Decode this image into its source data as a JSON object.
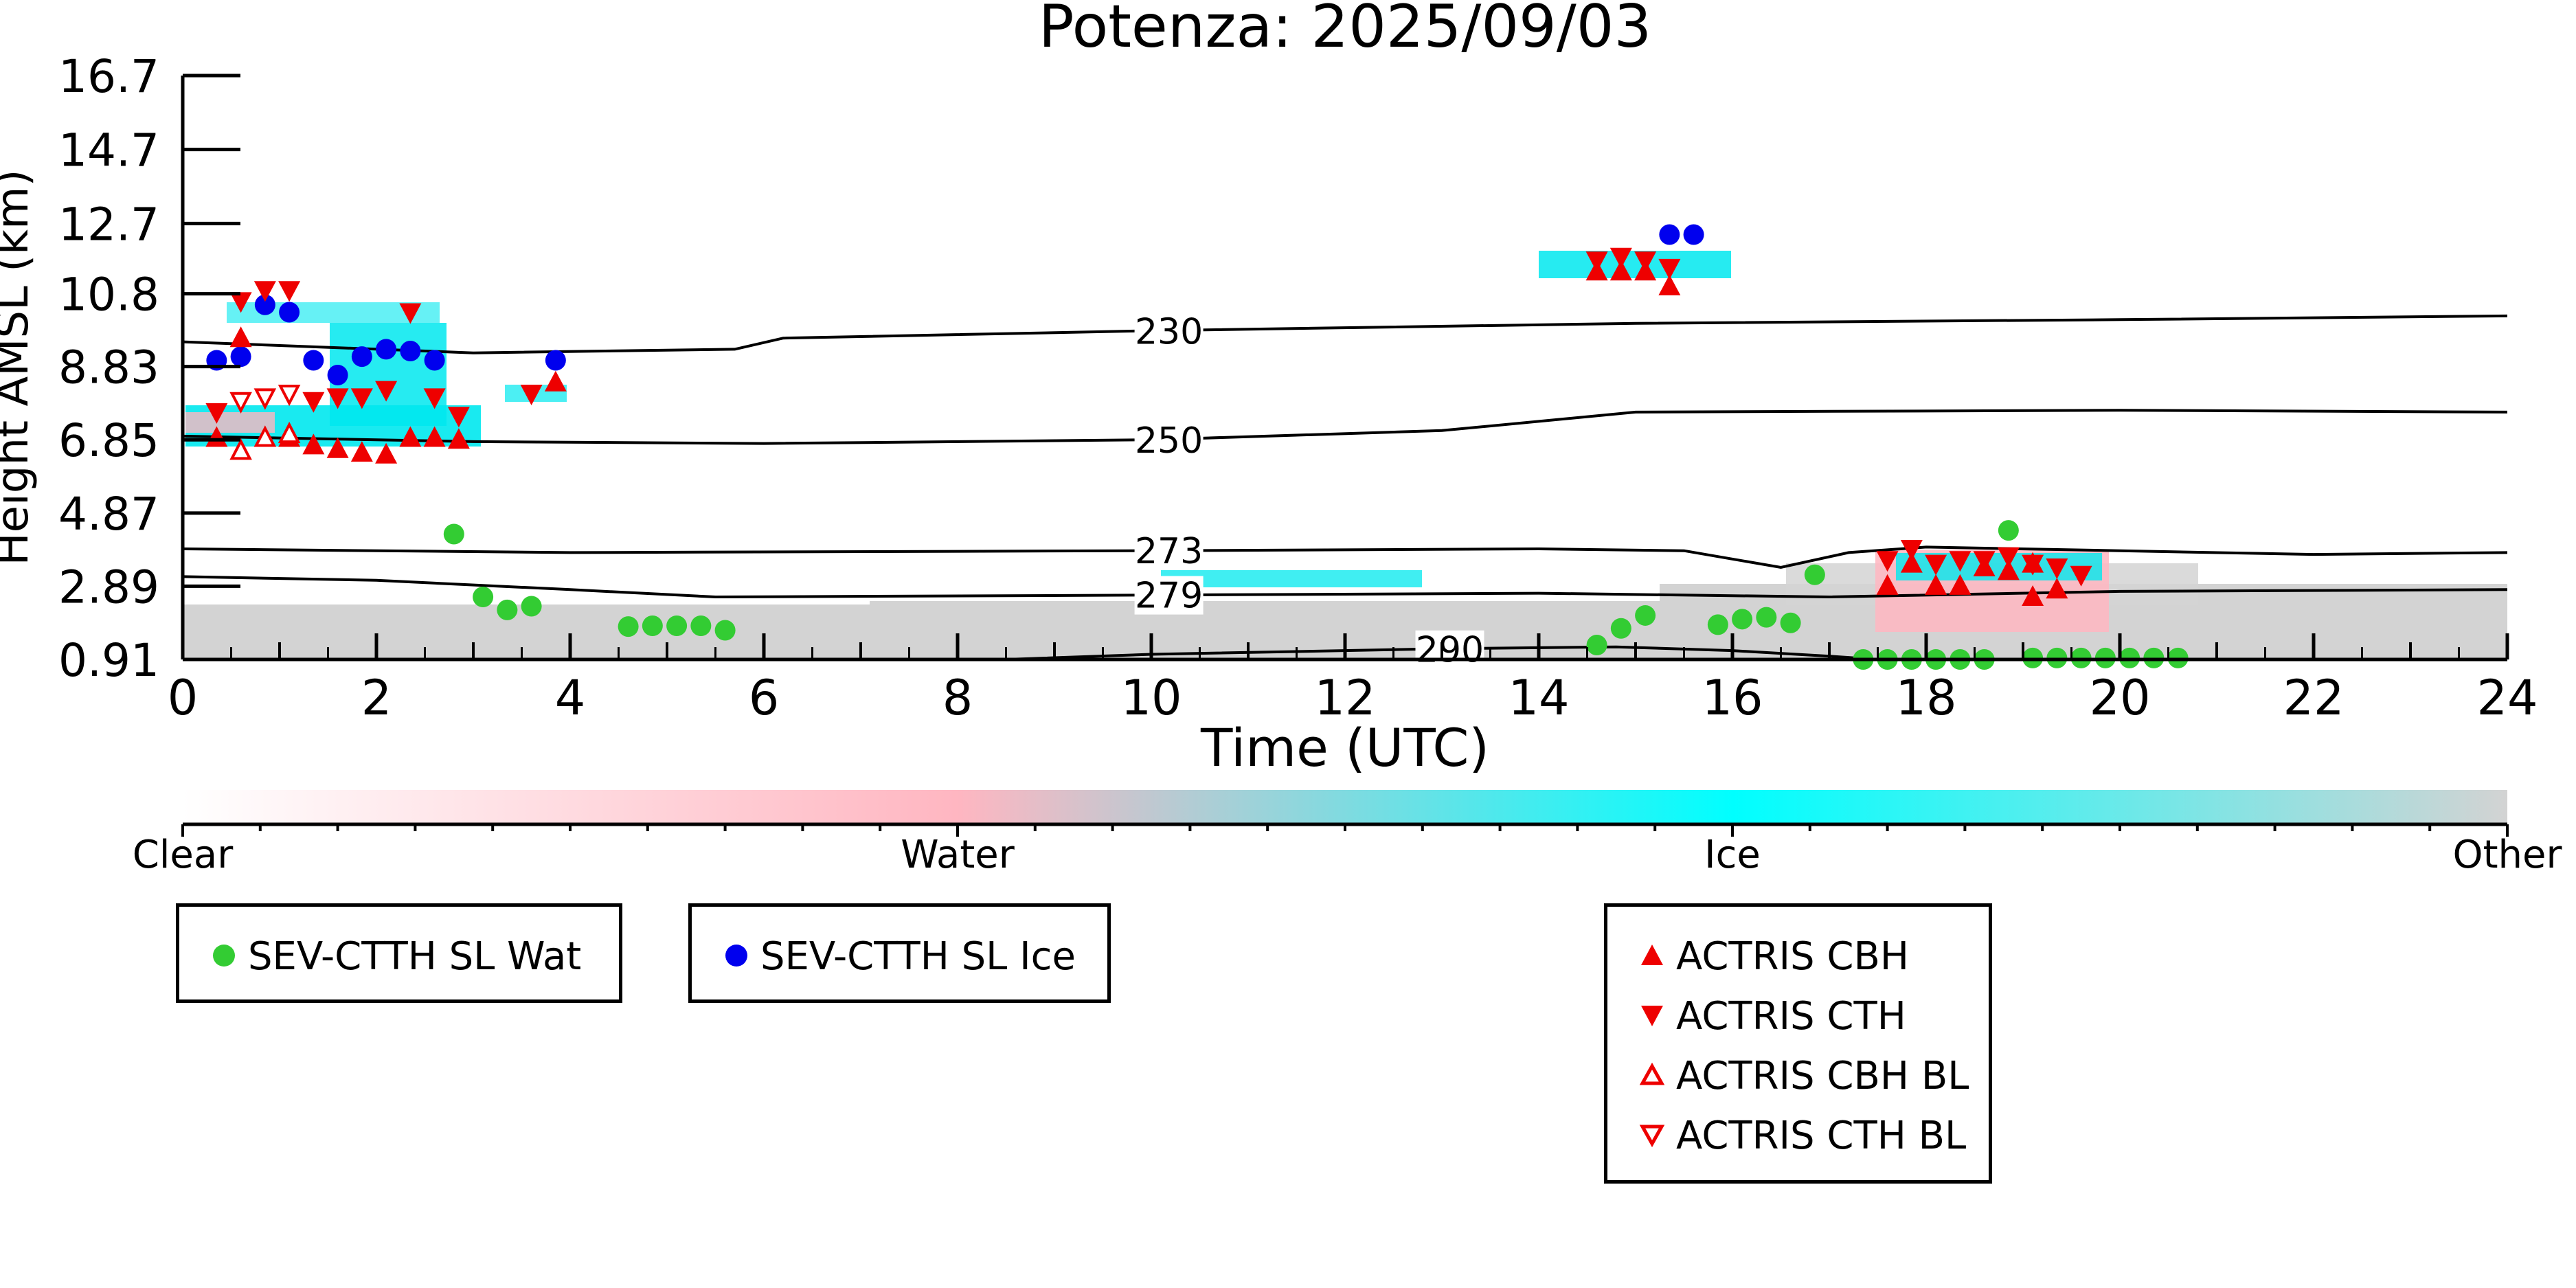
{
  "chart_data": {
    "type": "scatter",
    "title": "Potenza: 2025/09/03",
    "xlabel": "Time (UTC)",
    "ylabel": "Height AMSL (km)",
    "xlim": [
      0,
      24
    ],
    "ylim": [
      0.91,
      16.7
    ],
    "x_ticks": [
      "0",
      "2",
      "4",
      "6",
      "8",
      "10",
      "12",
      "14",
      "16",
      "18",
      "20",
      "22",
      "24"
    ],
    "y_ticks": [
      "0.91",
      "2.89",
      "4.87",
      "6.85",
      "8.83",
      "10.8",
      "12.7",
      "14.7",
      "16.7"
    ],
    "colorbar": {
      "labels": [
        "Clear",
        "Water",
        "Ice",
        "Other"
      ],
      "colors": [
        "#ffffff",
        "#ffb6c1",
        "#00ffff",
        "#d3d3d3"
      ]
    },
    "contours": [
      {
        "label": "230",
        "points": [
          [
            0,
            9.5
          ],
          [
            3,
            9.2
          ],
          [
            5.7,
            9.3
          ],
          [
            6.2,
            9.6
          ],
          [
            10,
            9.8
          ],
          [
            15,
            10.0
          ],
          [
            20,
            10.1
          ],
          [
            24,
            10.2
          ]
        ]
      },
      {
        "label": "250",
        "points": [
          [
            0,
            6.95
          ],
          [
            3,
            6.8
          ],
          [
            6,
            6.75
          ],
          [
            10,
            6.85
          ],
          [
            13,
            7.1
          ],
          [
            15,
            7.6
          ],
          [
            20,
            7.65
          ],
          [
            24,
            7.6
          ]
        ]
      },
      {
        "label": "273",
        "points": [
          [
            0,
            3.9
          ],
          [
            4,
            3.8
          ],
          [
            10,
            3.85
          ],
          [
            14,
            3.9
          ],
          [
            15.5,
            3.85
          ],
          [
            16.5,
            3.4
          ],
          [
            17.2,
            3.8
          ],
          [
            18,
            3.95
          ],
          [
            22,
            3.75
          ],
          [
            24,
            3.8
          ]
        ]
      },
      {
        "label": "279",
        "points": [
          [
            0,
            3.15
          ],
          [
            2,
            3.05
          ],
          [
            4,
            2.8
          ],
          [
            5.5,
            2.6
          ],
          [
            10,
            2.65
          ],
          [
            14,
            2.7
          ],
          [
            17,
            2.6
          ],
          [
            20,
            2.75
          ],
          [
            24,
            2.8
          ]
        ]
      },
      {
        "label": "290",
        "points": [
          [
            8.5,
            0.91
          ],
          [
            10,
            1.05
          ],
          [
            13,
            1.2
          ],
          [
            14.8,
            1.25
          ],
          [
            16,
            1.15
          ],
          [
            17,
            1.0
          ],
          [
            17.5,
            0.91
          ]
        ]
      }
    ],
    "series": [
      {
        "name": "SEV-CTTH SL Wat",
        "color": "#33cc33",
        "marker": "circle",
        "points": [
          [
            2.8,
            4.3
          ],
          [
            3.1,
            2.6
          ],
          [
            3.35,
            2.25
          ],
          [
            3.6,
            2.35
          ],
          [
            4.6,
            1.8
          ],
          [
            4.85,
            1.82
          ],
          [
            5.1,
            1.82
          ],
          [
            5.35,
            1.82
          ],
          [
            5.6,
            1.7
          ],
          [
            14.6,
            1.3
          ],
          [
            14.85,
            1.75
          ],
          [
            15.1,
            2.1
          ],
          [
            15.85,
            1.85
          ],
          [
            16.1,
            2.0
          ],
          [
            16.35,
            2.05
          ],
          [
            16.6,
            1.9
          ],
          [
            16.85,
            3.2
          ],
          [
            17.35,
            0.91
          ],
          [
            17.6,
            0.91
          ],
          [
            17.85,
            0.91
          ],
          [
            18.1,
            0.91
          ],
          [
            18.35,
            0.91
          ],
          [
            18.6,
            0.91
          ],
          [
            18.85,
            4.4
          ],
          [
            19.1,
            0.95
          ],
          [
            19.35,
            0.95
          ],
          [
            19.6,
            0.95
          ],
          [
            19.85,
            0.95
          ],
          [
            20.1,
            0.95
          ],
          [
            20.35,
            0.95
          ],
          [
            20.6,
            0.95
          ]
        ]
      },
      {
        "name": "SEV-CTTH SL Ice",
        "color": "#0000ee",
        "marker": "circle",
        "points": [
          [
            0.35,
            9.0
          ],
          [
            0.6,
            9.1
          ],
          [
            0.85,
            10.5
          ],
          [
            1.1,
            10.3
          ],
          [
            1.35,
            9.0
          ],
          [
            1.6,
            8.6
          ],
          [
            1.85,
            9.1
          ],
          [
            2.1,
            9.3
          ],
          [
            2.35,
            9.25
          ],
          [
            2.6,
            9.0
          ],
          [
            3.85,
            9.0
          ],
          [
            15.35,
            12.4
          ],
          [
            15.6,
            12.4
          ]
        ]
      },
      {
        "name": "ACTRIS CBH",
        "color": "#ee0000",
        "marker": "triangle-up",
        "points": [
          [
            0.35,
            6.9
          ],
          [
            0.6,
            9.6
          ],
          [
            1.1,
            6.9
          ],
          [
            1.35,
            6.7
          ],
          [
            1.6,
            6.6
          ],
          [
            1.85,
            6.5
          ],
          [
            2.1,
            6.45
          ],
          [
            2.35,
            6.9
          ],
          [
            2.6,
            6.9
          ],
          [
            2.85,
            6.85
          ],
          [
            3.85,
            8.4
          ],
          [
            14.6,
            11.4
          ],
          [
            14.85,
            11.4
          ],
          [
            15.1,
            11.4
          ],
          [
            15.35,
            11.0
          ],
          [
            17.6,
            2.9
          ],
          [
            17.85,
            3.5
          ],
          [
            18.1,
            2.9
          ],
          [
            18.35,
            2.9
          ],
          [
            18.6,
            3.4
          ],
          [
            18.85,
            3.3
          ],
          [
            19.1,
            3.5
          ],
          [
            19.35,
            2.8
          ],
          [
            19.1,
            2.6
          ]
        ]
      },
      {
        "name": "ACTRIS CTH",
        "color": "#ee0000",
        "marker": "triangle-down",
        "points": [
          [
            0.35,
            7.6
          ],
          [
            0.6,
            10.6
          ],
          [
            0.85,
            10.9
          ],
          [
            1.1,
            10.9
          ],
          [
            1.35,
            7.9
          ],
          [
            1.6,
            8.0
          ],
          [
            1.85,
            8.0
          ],
          [
            2.1,
            8.2
          ],
          [
            2.35,
            10.3
          ],
          [
            2.6,
            8.0
          ],
          [
            2.85,
            7.5
          ],
          [
            3.6,
            8.1
          ],
          [
            14.6,
            11.7
          ],
          [
            14.85,
            11.8
          ],
          [
            15.1,
            11.7
          ],
          [
            15.35,
            11.5
          ],
          [
            17.6,
            3.6
          ],
          [
            17.85,
            3.9
          ],
          [
            18.1,
            3.5
          ],
          [
            18.35,
            3.6
          ],
          [
            18.6,
            3.6
          ],
          [
            18.85,
            3.7
          ],
          [
            19.1,
            3.5
          ],
          [
            19.35,
            3.4
          ],
          [
            19.6,
            3.2
          ]
        ]
      },
      {
        "name": "ACTRIS CBH BL",
        "color": "#ee0000",
        "marker": "triangle-up-open",
        "points": [
          [
            0.6,
            6.55
          ],
          [
            0.85,
            6.9
          ],
          [
            1.1,
            7.0
          ]
        ]
      },
      {
        "name": "ACTRIS CTH BL",
        "color": "#ee0000",
        "marker": "triangle-down-open",
        "points": [
          [
            0.6,
            7.9
          ],
          [
            0.85,
            8.0
          ],
          [
            1.1,
            8.1
          ]
        ]
      }
    ]
  },
  "legends": {
    "sev_wat": "SEV-CTTH SL Wat",
    "sev_ice": "SEV-CTTH SL Ice",
    "actris_cbh": "ACTRIS CBH",
    "actris_cth": "ACTRIS CTH",
    "actris_cbh_bl": "ACTRIS CBH BL",
    "actris_cth_bl": "ACTRIS CTH BL"
  }
}
